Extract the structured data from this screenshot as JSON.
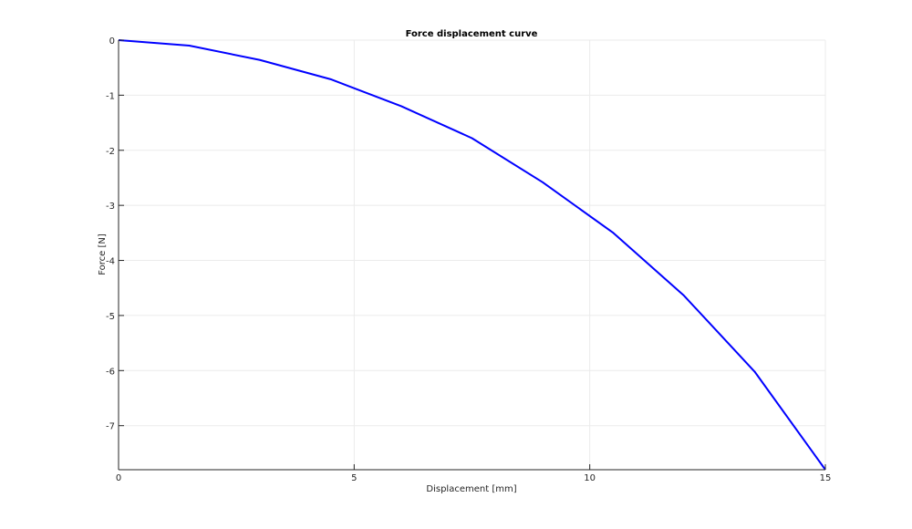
{
  "chart_data": {
    "type": "line",
    "title": "Force displacement curve",
    "xlabel": "Displacement [mm]",
    "ylabel": "Force [N]",
    "xlim": [
      0,
      15
    ],
    "ylim": [
      -7.8,
      0
    ],
    "xticks": [
      0,
      5,
      10,
      15
    ],
    "xtick_labels": [
      "0",
      "5",
      "10",
      "15"
    ],
    "yticks": [
      0,
      -1,
      -2,
      -3,
      -4,
      -5,
      -6,
      -7
    ],
    "ytick_labels": [
      "0",
      "-1",
      "-2",
      "-3",
      "-4",
      "-5",
      "-6",
      "-7"
    ],
    "grid": true,
    "legend": false,
    "series": [
      {
        "color": "#0000ff",
        "x": [
          0,
          1.5,
          3,
          4.5,
          6,
          7.5,
          9,
          10.5,
          12,
          13.5,
          15
        ],
        "y": [
          0,
          -0.1,
          -0.36,
          -0.71,
          -1.2,
          -1.78,
          -2.58,
          -3.5,
          -4.64,
          -6.02,
          -7.8
        ]
      }
    ]
  }
}
